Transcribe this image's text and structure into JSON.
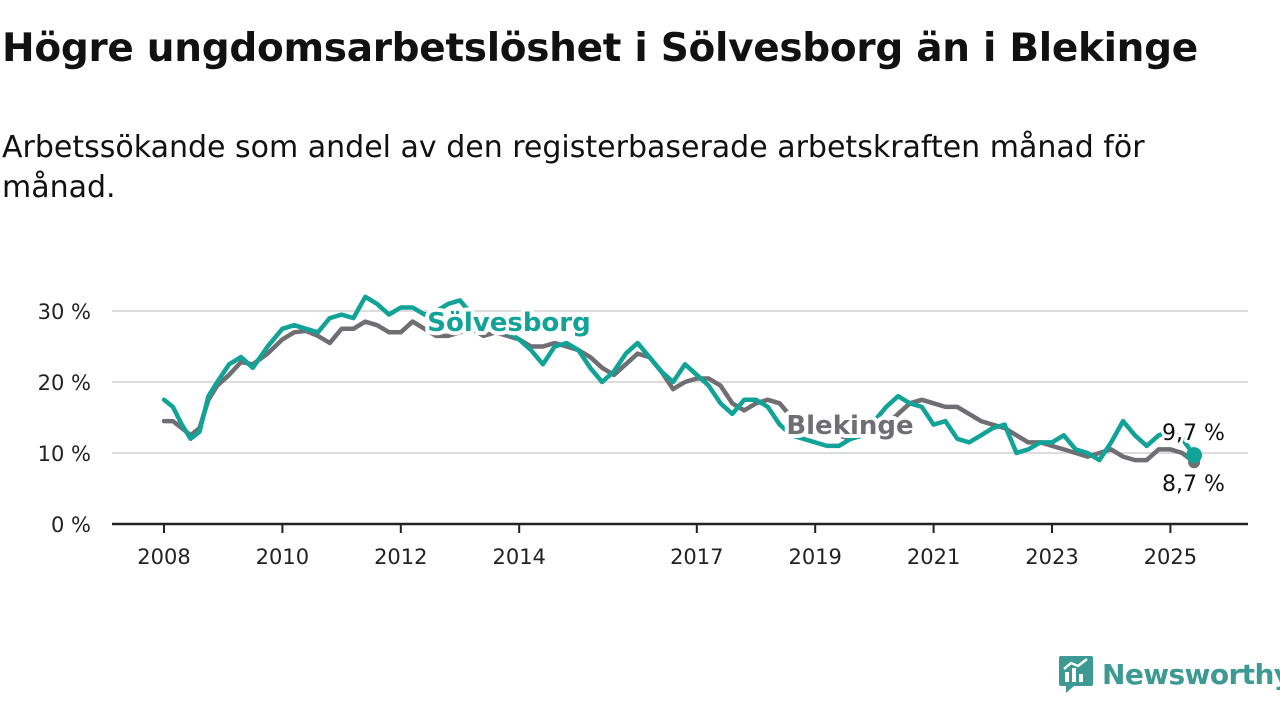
{
  "title": "Högre ungdomsarbetslöshet i Sölvesborg än i Blekinge",
  "subtitle": "Arbetssökande som andel av den registerbaserade arbetskraften månad för månad.",
  "brand": {
    "name": "Newsworthy",
    "icon": "newsworthy-logo-icon",
    "color": "#3d9a93"
  },
  "colors": {
    "solvesborg": "#11a398",
    "blekinge": "#6f6f73",
    "grid": "#dcdcdc",
    "axis": "#222222"
  },
  "chart_data": {
    "type": "line",
    "title": "Högre ungdomsarbetslöshet i Sölvesborg än i Blekinge",
    "ylabel": "",
    "xlabel": "",
    "ylim": [
      0,
      32
    ],
    "xlim": [
      2008,
      2025.7
    ],
    "y_ticks": [
      {
        "value": 0,
        "label": "0 %"
      },
      {
        "value": 10,
        "label": "10 %"
      },
      {
        "value": 20,
        "label": "20 %"
      },
      {
        "value": 30,
        "label": "30 %"
      }
    ],
    "x_ticks": [
      {
        "value": 2008,
        "label": "2008"
      },
      {
        "value": 2010,
        "label": "2010"
      },
      {
        "value": 2012,
        "label": "2012"
      },
      {
        "value": 2014,
        "label": "2014"
      },
      {
        "value": 2017,
        "label": "2017"
      },
      {
        "value": 2019,
        "label": "2019"
      },
      {
        "value": 2021,
        "label": "2021"
      },
      {
        "value": 2023,
        "label": "2023"
      },
      {
        "value": 2025,
        "label": "2025"
      }
    ],
    "grid": "horizontal",
    "series": [
      {
        "name": "Blekinge",
        "color": "#6f6f73",
        "x": [
          2008.0,
          2008.15,
          2008.3,
          2008.45,
          2008.6,
          2008.75,
          2008.9,
          2009.1,
          2009.3,
          2009.5,
          2009.75,
          2010.0,
          2010.2,
          2010.4,
          2010.6,
          2010.8,
          2011.0,
          2011.2,
          2011.4,
          2011.6,
          2011.8,
          2012.0,
          2012.2,
          2012.4,
          2012.6,
          2012.8,
          2013.0,
          2013.2,
          2013.4,
          2013.6,
          2013.8,
          2014.0,
          2014.2,
          2014.4,
          2014.6,
          2014.8,
          2015.0,
          2015.2,
          2015.4,
          2015.6,
          2015.8,
          2016.0,
          2016.2,
          2016.4,
          2016.6,
          2016.8,
          2017.0,
          2017.2,
          2017.4,
          2017.6,
          2017.8,
          2018.0,
          2018.2,
          2018.4,
          2018.6,
          2018.8,
          2019.0,
          2019.2,
          2019.4,
          2019.6,
          2019.8,
          2020.0,
          2020.2,
          2020.4,
          2020.6,
          2020.8,
          2021.0,
          2021.2,
          2021.4,
          2021.6,
          2021.8,
          2022.0,
          2022.2,
          2022.4,
          2022.6,
          2022.8,
          2023.0,
          2023.2,
          2023.4,
          2023.6,
          2023.8,
          2024.0,
          2024.2,
          2024.4,
          2024.6,
          2024.8,
          2025.0,
          2025.2,
          2025.4
        ],
        "values": [
          14.5,
          14.5,
          13.5,
          12.5,
          13.5,
          17.5,
          19.5,
          21.0,
          22.8,
          22.5,
          24.0,
          26.0,
          27.0,
          27.2,
          26.5,
          25.5,
          27.5,
          27.5,
          28.5,
          28.0,
          27.0,
          27.0,
          28.5,
          27.5,
          26.5,
          26.5,
          27.0,
          27.5,
          26.5,
          27.0,
          26.5,
          26.0,
          25.0,
          25.0,
          25.5,
          25.0,
          24.5,
          23.5,
          22.0,
          21.0,
          22.5,
          24.0,
          23.5,
          21.5,
          19.0,
          20.0,
          20.5,
          20.5,
          19.5,
          17.0,
          16.0,
          17.0,
          17.5,
          17.0,
          15.0,
          14.5,
          13.5,
          13.0,
          12.5,
          12.0,
          12.5,
          13.0,
          14.0,
          15.5,
          17.0,
          17.5,
          17.0,
          16.5,
          16.5,
          15.5,
          14.5,
          14.0,
          13.5,
          12.5,
          11.5,
          11.5,
          11.0,
          10.5,
          10.0,
          9.5,
          10.0,
          10.5,
          9.5,
          9.0,
          9.0,
          10.5,
          10.5,
          10.0,
          8.7
        ]
      },
      {
        "name": "Sölvesborg",
        "color": "#11a398",
        "x": [
          2008.0,
          2008.15,
          2008.3,
          2008.45,
          2008.6,
          2008.75,
          2008.9,
          2009.1,
          2009.3,
          2009.5,
          2009.75,
          2010.0,
          2010.2,
          2010.4,
          2010.6,
          2010.8,
          2011.0,
          2011.2,
          2011.4,
          2011.6,
          2011.8,
          2012.0,
          2012.2,
          2012.4,
          2012.6,
          2012.8,
          2013.0,
          2013.2,
          2013.4,
          2013.6,
          2013.8,
          2014.0,
          2014.2,
          2014.4,
          2014.6,
          2014.8,
          2015.0,
          2015.2,
          2015.4,
          2015.6,
          2015.8,
          2016.0,
          2016.2,
          2016.4,
          2016.6,
          2016.8,
          2017.0,
          2017.2,
          2017.4,
          2017.6,
          2017.8,
          2018.0,
          2018.2,
          2018.4,
          2018.6,
          2018.8,
          2019.0,
          2019.2,
          2019.4,
          2019.6,
          2019.8,
          2020.0,
          2020.2,
          2020.4,
          2020.6,
          2020.8,
          2021.0,
          2021.2,
          2021.4,
          2021.6,
          2021.8,
          2022.0,
          2022.2,
          2022.4,
          2022.6,
          2022.8,
          2023.0,
          2023.2,
          2023.4,
          2023.6,
          2023.8,
          2024.0,
          2024.2,
          2024.4,
          2024.6,
          2024.8,
          2025.0,
          2025.2,
          2025.4
        ],
        "values": [
          17.5,
          16.5,
          14.0,
          12.0,
          13.0,
          18.0,
          20.0,
          22.5,
          23.5,
          22.0,
          25.0,
          27.5,
          28.0,
          27.5,
          27.0,
          29.0,
          29.5,
          29.0,
          32.0,
          31.0,
          29.5,
          30.5,
          30.5,
          29.5,
          30.0,
          31.0,
          31.5,
          29.5,
          28.5,
          27.5,
          27.0,
          26.0,
          24.5,
          22.5,
          25.0,
          25.5,
          24.5,
          22.0,
          20.0,
          21.5,
          24.0,
          25.5,
          23.5,
          21.5,
          20.0,
          22.5,
          21.0,
          19.5,
          17.0,
          15.5,
          17.5,
          17.5,
          16.5,
          14.0,
          12.5,
          12.0,
          11.5,
          11.0,
          11.0,
          12.0,
          12.5,
          14.5,
          16.5,
          18.0,
          17.0,
          16.5,
          14.0,
          14.5,
          12.0,
          11.5,
          12.5,
          13.5,
          14.0,
          10.0,
          10.5,
          11.5,
          11.5,
          12.5,
          10.5,
          10.0,
          9.0,
          11.5,
          14.5,
          12.5,
          11.0,
          12.5,
          13.0,
          12.0,
          9.7
        ]
      }
    ],
    "labels": [
      {
        "text": "Sölvesborg",
        "series": "Sölvesborg"
      },
      {
        "text": "Blekinge",
        "series": "Blekinge"
      }
    ],
    "end_labels": [
      {
        "text": "9,7 %",
        "series": "Sölvesborg"
      },
      {
        "text": "8,7 %",
        "series": "Blekinge"
      }
    ]
  }
}
